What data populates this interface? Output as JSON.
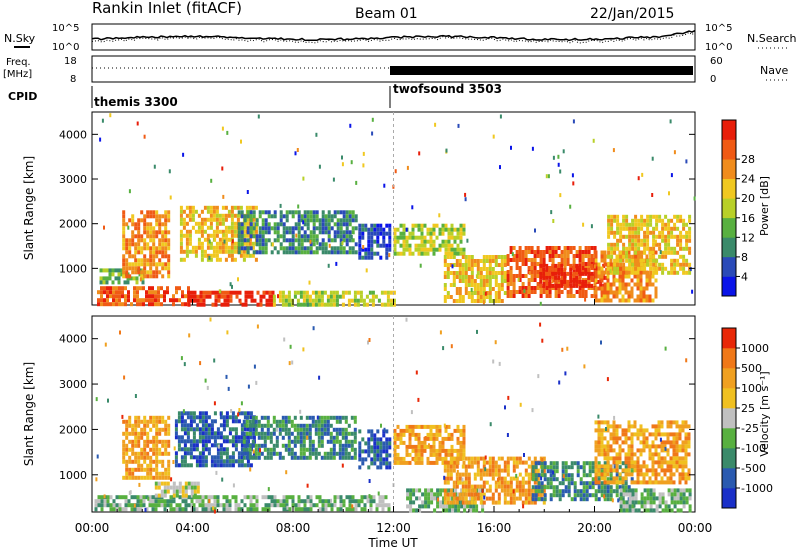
{
  "header": {
    "title": "Rankin Inlet (fitACF)",
    "beam": "Beam 01",
    "date": "22/Jan/2015"
  },
  "sky_panel": {
    "left_label": "N.Sky",
    "right_label": "N.Search",
    "left_ticks": [
      "10^5",
      "10^0"
    ],
    "right_ticks": [
      "10^5",
      "10^0"
    ]
  },
  "freq_panel": {
    "left_label_line1": "Freq.",
    "left_label_line2": "[MHz]",
    "right_label": "Nave",
    "left_ticks": [
      "18",
      "8"
    ],
    "right_ticks": [
      "60",
      "0"
    ]
  },
  "cpid_panel": {
    "label": "CPID",
    "modes": [
      {
        "name": "themis 3300",
        "start_hour": 0
      },
      {
        "name": "twofsound 3503",
        "start_hour": 12
      }
    ]
  },
  "time_axis": {
    "title": "Time UT",
    "ticks": [
      "00:00",
      "04:00",
      "08:00",
      "12:00",
      "16:00",
      "20:00",
      "00:00"
    ]
  },
  "chart_data": [
    {
      "type": "heatmap",
      "name": "power",
      "ylabel": "Slant Range [km]",
      "xlim_hours": [
        0,
        24
      ],
      "ylim_km": [
        180,
        4500
      ],
      "yticks": [
        1000,
        2000,
        3000,
        4000
      ],
      "colorbar": {
        "label": "Power [dB]",
        "ticks": [
          "4",
          "8",
          "12",
          "16",
          "20",
          "24",
          "28"
        ],
        "colors": [
          "#0a14e8",
          "#2a4ab8",
          "#3a8a6a",
          "#58b040",
          "#b8d028",
          "#f0c820",
          "#f08c1c",
          "#f05a14",
          "#e81e0a"
        ]
      },
      "regions": [
        {
          "t0": 0.2,
          "t1": 3.8,
          "r0": 200,
          "r1": 600,
          "level": 7
        },
        {
          "t0": 3.8,
          "t1": 7.2,
          "r0": 200,
          "r1": 500,
          "level": 8
        },
        {
          "t0": 7.2,
          "t1": 12.0,
          "r0": 200,
          "r1": 500,
          "level": 4
        },
        {
          "t0": 0.3,
          "t1": 2.0,
          "r0": 650,
          "r1": 1000,
          "level": 3
        },
        {
          "t0": 1.2,
          "t1": 3.0,
          "r0": 800,
          "r1": 2300,
          "level": 6
        },
        {
          "t0": 3.5,
          "t1": 6.5,
          "r0": 1200,
          "r1": 2400,
          "level": 5
        },
        {
          "t0": 5.8,
          "t1": 10.5,
          "r0": 1400,
          "r1": 2300,
          "level": 2
        },
        {
          "t0": 10.6,
          "t1": 11.8,
          "r0": 1200,
          "r1": 2000,
          "level": 1
        },
        {
          "t0": 12.0,
          "t1": 14.8,
          "r0": 1300,
          "r1": 2000,
          "level": 4
        },
        {
          "t0": 14.0,
          "t1": 16.5,
          "r0": 250,
          "r1": 1300,
          "level": 5
        },
        {
          "t0": 16.5,
          "t1": 20.0,
          "r0": 400,
          "r1": 1500,
          "level": 7
        },
        {
          "t0": 17.8,
          "t1": 20.5,
          "r0": 600,
          "r1": 1100,
          "level": 8
        },
        {
          "t0": 20.0,
          "t1": 22.5,
          "r0": 250,
          "r1": 1400,
          "level": 6
        },
        {
          "t0": 20.5,
          "t1": 23.8,
          "r0": 900,
          "r1": 2200,
          "level": 5
        }
      ]
    },
    {
      "type": "heatmap",
      "name": "velocity",
      "ylabel": "Slant Range [km]",
      "xlim_hours": [
        0,
        24
      ],
      "ylim_km": [
        180,
        4500
      ],
      "yticks": [
        1000,
        2000,
        3000,
        4000
      ],
      "colorbar": {
        "label": "Velocity [m s⁻¹]",
        "ticks": [
          "1000",
          "500",
          "100",
          "25",
          "-25",
          "-100",
          "-500",
          "-1000"
        ],
        "colors": [
          "#1a30c8",
          "#2a5ab0",
          "#3a8a6a",
          "#58b040",
          "#c0c0c0",
          "#f0c020",
          "#f0a020",
          "#f07818",
          "#e82808"
        ]
      },
      "regions": [
        {
          "t0": 0.1,
          "t1": 4.0,
          "r0": 200,
          "r1": 550,
          "level": 3
        },
        {
          "t0": 2.5,
          "t1": 4.2,
          "r0": 500,
          "r1": 850,
          "level": 4
        },
        {
          "t0": 4.0,
          "t1": 11.8,
          "r0": 200,
          "r1": 550,
          "level": 3
        },
        {
          "t0": 1.2,
          "t1": 3.0,
          "r0": 900,
          "r1": 2300,
          "level": 6
        },
        {
          "t0": 3.3,
          "t1": 6.5,
          "r0": 1200,
          "r1": 2400,
          "level": 1
        },
        {
          "t0": 6.0,
          "t1": 10.5,
          "r0": 1400,
          "r1": 2300,
          "level": 2
        },
        {
          "t0": 10.6,
          "t1": 11.8,
          "r0": 1200,
          "r1": 2000,
          "level": 1
        },
        {
          "t0": 12.0,
          "t1": 14.8,
          "r0": 1300,
          "r1": 2100,
          "level": 6
        },
        {
          "t0": 12.5,
          "t1": 15.5,
          "r0": 200,
          "r1": 700,
          "level": 3
        },
        {
          "t0": 14.0,
          "t1": 18.0,
          "r0": 400,
          "r1": 1400,
          "level": 6
        },
        {
          "t0": 17.5,
          "t1": 21.5,
          "r0": 500,
          "r1": 1300,
          "level": 2
        },
        {
          "t0": 20.0,
          "t1": 23.8,
          "r0": 800,
          "r1": 2200,
          "level": 6
        },
        {
          "t0": 21.0,
          "t1": 23.8,
          "r0": 200,
          "r1": 700,
          "level": 3
        }
      ]
    }
  ]
}
